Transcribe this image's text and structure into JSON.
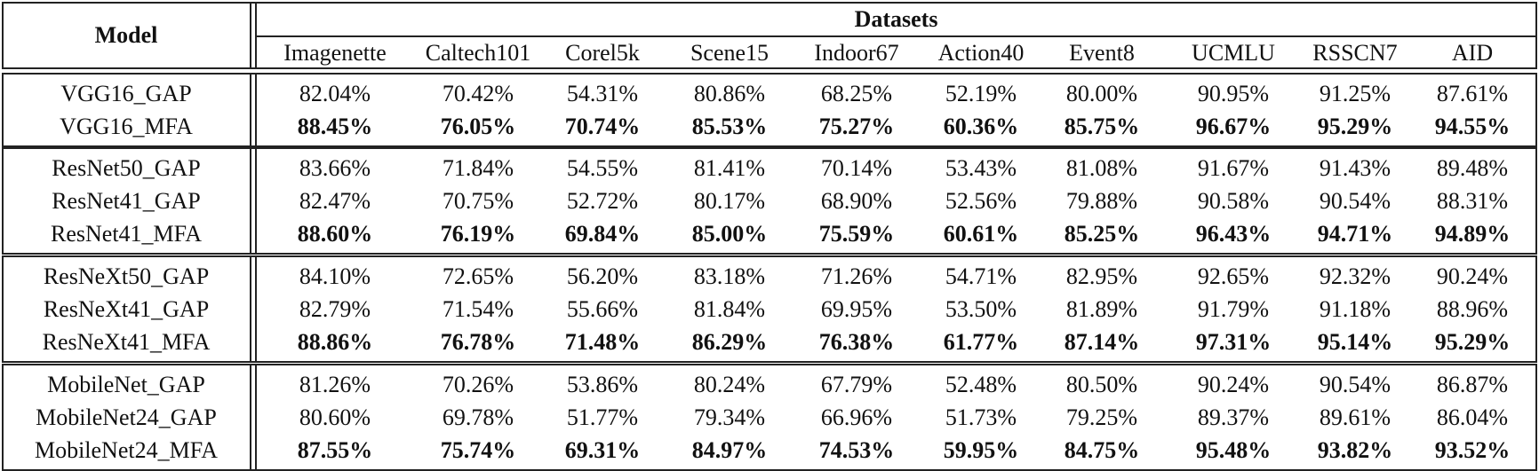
{
  "header": {
    "model_label": "Model",
    "datasets_label": "Datasets",
    "datasets": [
      "Imagenette",
      "Caltech101",
      "Corel5k",
      "Scene15",
      "Indoor67",
      "Action40",
      "Event8",
      "UCMLU",
      "RSSCN7",
      "AID"
    ]
  },
  "groups": [
    {
      "rows": [
        {
          "model": "VGG16_GAP",
          "bold": false,
          "values": [
            "82.04%",
            "70.42%",
            "54.31%",
            "80.86%",
            "68.25%",
            "52.19%",
            "80.00%",
            "90.95%",
            "91.25%",
            "87.61%"
          ]
        },
        {
          "model": "VGG16_MFA",
          "bold": true,
          "values": [
            "88.45%",
            "76.05%",
            "70.74%",
            "85.53%",
            "75.27%",
            "60.36%",
            "85.75%",
            "96.67%",
            "95.29%",
            "94.55%"
          ]
        }
      ]
    },
    {
      "rows": [
        {
          "model": "ResNet50_GAP",
          "bold": false,
          "values": [
            "83.66%",
            "71.84%",
            "54.55%",
            "81.41%",
            "70.14%",
            "53.43%",
            "81.08%",
            "91.67%",
            "91.43%",
            "89.48%"
          ]
        },
        {
          "model": "ResNet41_GAP",
          "bold": false,
          "values": [
            "82.47%",
            "70.75%",
            "52.72%",
            "80.17%",
            "68.90%",
            "52.56%",
            "79.88%",
            "90.58%",
            "90.54%",
            "88.31%"
          ]
        },
        {
          "model": "ResNet41_MFA",
          "bold": true,
          "values": [
            "88.60%",
            "76.19%",
            "69.84%",
            "85.00%",
            "75.59%",
            "60.61%",
            "85.25%",
            "96.43%",
            "94.71%",
            "94.89%"
          ]
        }
      ]
    },
    {
      "rows": [
        {
          "model": "ResNeXt50_GAP",
          "bold": false,
          "values": [
            "84.10%",
            "72.65%",
            "56.20%",
            "83.18%",
            "71.26%",
            "54.71%",
            "82.95%",
            "92.65%",
            "92.32%",
            "90.24%"
          ]
        },
        {
          "model": "ResNeXt41_GAP",
          "bold": false,
          "values": [
            "82.79%",
            "71.54%",
            "55.66%",
            "81.84%",
            "69.95%",
            "53.50%",
            "81.89%",
            "91.79%",
            "91.18%",
            "88.96%"
          ]
        },
        {
          "model": "ResNeXt41_MFA",
          "bold": true,
          "values": [
            "88.86%",
            "76.78%",
            "71.48%",
            "86.29%",
            "76.38%",
            "61.77%",
            "87.14%",
            "97.31%",
            "95.14%",
            "95.29%"
          ]
        }
      ]
    },
    {
      "rows": [
        {
          "model": "MobileNet_GAP",
          "bold": false,
          "values": [
            "81.26%",
            "70.26%",
            "53.86%",
            "80.24%",
            "67.79%",
            "52.48%",
            "80.50%",
            "90.24%",
            "90.54%",
            "86.87%"
          ]
        },
        {
          "model": "MobileNet24_GAP",
          "bold": false,
          "values": [
            "80.60%",
            "69.78%",
            "51.77%",
            "79.34%",
            "66.96%",
            "51.73%",
            "79.25%",
            "89.37%",
            "89.61%",
            "86.04%"
          ]
        },
        {
          "model": "MobileNet24_MFA",
          "bold": true,
          "values": [
            "87.55%",
            "75.74%",
            "69.31%",
            "84.97%",
            "74.53%",
            "59.95%",
            "84.75%",
            "95.48%",
            "93.82%",
            "93.52%"
          ]
        }
      ]
    }
  ]
}
